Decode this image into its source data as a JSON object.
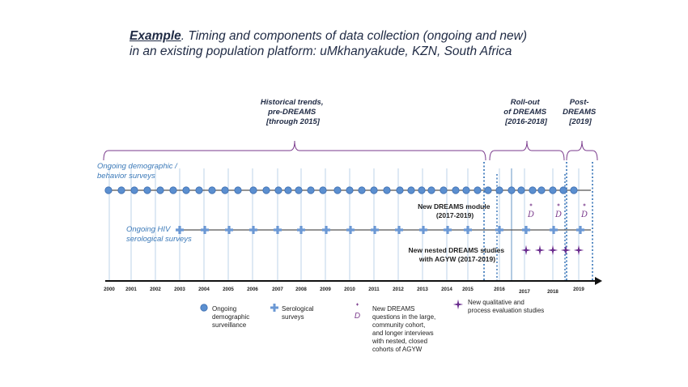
{
  "title": {
    "lead": "Example",
    "line1": ". Timing and components of data collection (ongoing and new)",
    "line2": "in an existing population platform: uMkhanyakude, KZN, South Africa"
  },
  "periods": [
    {
      "lines": [
        "Historical trends,",
        "pre-DREAMS",
        "[through 2015]"
      ]
    },
    {
      "lines": [
        "Roll-out",
        "of DREAMS",
        "[2016-2018]"
      ]
    },
    {
      "lines": [
        "Post-",
        "DREAMS",
        "[2019]"
      ]
    }
  ],
  "rows": {
    "demographic": [
      "Ongoing demographic /",
      "behavior surveys"
    ],
    "serological": [
      "Ongoing HIV",
      "serological surveys"
    ]
  },
  "annotations": {
    "dreams_module": [
      "New DREAMS module",
      "(2017-2019)"
    ],
    "nested_studies": [
      "New nested DREAMS studies",
      "with AGYW (2017-2019)"
    ]
  },
  "years": [
    "2000",
    "2001",
    "2002",
    "2003",
    "2004",
    "2005",
    "2006",
    "2007",
    "2008",
    "2009",
    "2010",
    "2011",
    "2012",
    "2013",
    "2014",
    "2015",
    "2016",
    "2017",
    "2018",
    "2019"
  ],
  "legend": {
    "demographic": [
      "Ongoing",
      "demographic",
      "surveillance"
    ],
    "serological": [
      "Serological",
      "surveys"
    ],
    "dreams_questions": [
      "New DREAMS",
      "questions in the large,",
      "community cohort,",
      "and longer interviews",
      "with nested, closed",
      "cohorts of AGYW"
    ],
    "qualitative": [
      "New qualitative and",
      "process evaluation studies"
    ]
  },
  "colors": {
    "circle": "#5b8fd0",
    "circle_stroke": "#3d6db0",
    "serological": "#6b98d4",
    "line": "#555555",
    "vline": "#bcd3ea",
    "dotted": "#2f6fb5",
    "brace": "#7a3a8c",
    "star": "#6a2c8e",
    "row_label": "#3b79b8",
    "period_label": "#1f2a44"
  },
  "icons": {
    "circle": "circle-marker-icon",
    "plus": "plus-marker-icon",
    "d_mark": "d-mark-icon",
    "star": "star-marker-icon"
  }
}
